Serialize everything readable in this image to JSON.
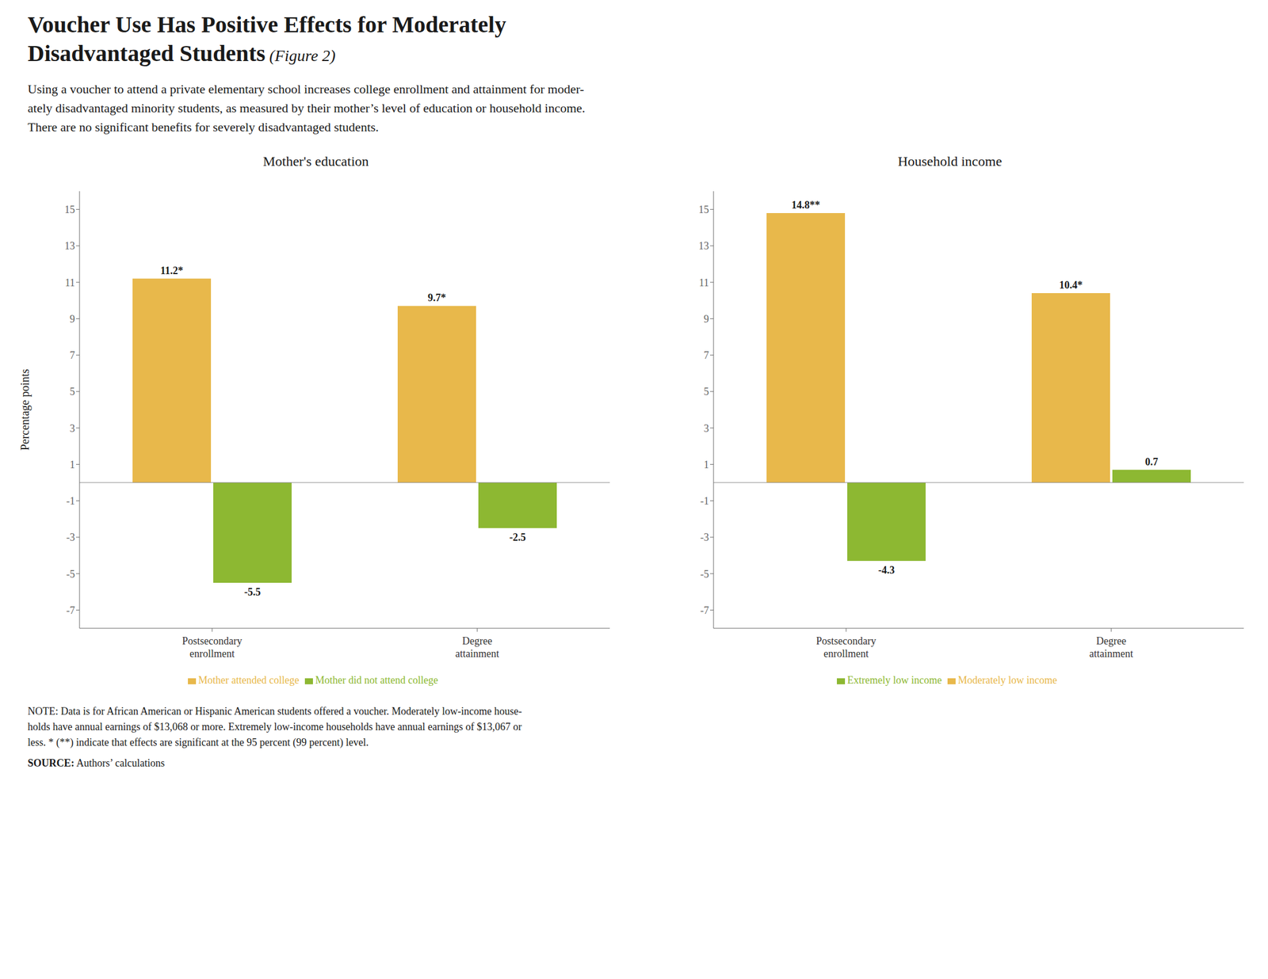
{
  "title": "Voucher Use Has Positive Effects for Moderately\nDisadvantaged Students",
  "subtitle": "Using a voucher to attend a private elementary school increases college enrollment and attainment for moder-\nately disadvantaged minority students, as measured by their mother’s level of education or household income.\nThere are no significant benefits for severely disadvantaged students.",
  "annotations": [
    "(Figure 2)",
    "NOTE: Data is for African American or Hispanic American students offered a voucher. Moderately low-income house-\nholds have annual earnings of $13,068 or more. Extremely low-income households have annual earnings of $13,067 or\nless. * (**) indicate that effects are significant at the 95 percent (99 percent) level.",
    "SOURCE:",
    "Authors’ calculations"
  ],
  "chart_data": [
    {
      "type": "bar",
      "title": "Mother's education",
      "ylabel": "Percentage points",
      "categories": [
        "Postsecondary\nenrollment",
        "Degree\nattainment"
      ],
      "series": [
        {
          "name": "Mother attended college",
          "color": "#e8b84b",
          "values": [
            11.2,
            9.7
          ],
          "value_labels": [
            "11.2*",
            "9.7*"
          ]
        },
        {
          "name": "Mother did not attend college",
          "color": "#8db832",
          "values": [
            -5.5,
            -2.5
          ],
          "value_labels": [
            "-5.5",
            "-2.5"
          ]
        }
      ],
      "ylim": [
        -8.0,
        16.0
      ],
      "yticks": [
        -7,
        -5,
        -3,
        -1,
        1,
        3,
        5,
        7,
        9,
        11,
        13,
        15
      ],
      "data_labels": true,
      "grid": false
    },
    {
      "type": "bar",
      "title": "Household income",
      "categories": [
        "Postsecondary\nenrollment",
        "Degree\nattainment"
      ],
      "series": [
        {
          "name": "Moderately low income",
          "color": "#e8b84b",
          "values": [
            14.8,
            10.4
          ],
          "value_labels": [
            "14.8**",
            "10.4*"
          ]
        },
        {
          "name": "Extremely low income",
          "color": "#8db832",
          "values": [
            -4.3,
            0.7
          ],
          "value_labels": [
            "-4.3",
            "0.7"
          ]
        }
      ],
      "ylim": [
        -8.0,
        16.0
      ],
      "yticks": [
        -7,
        -5,
        -3,
        -1,
        1,
        3,
        5,
        7,
        9,
        11,
        13,
        15
      ],
      "data_labels": true,
      "grid": false
    }
  ]
}
